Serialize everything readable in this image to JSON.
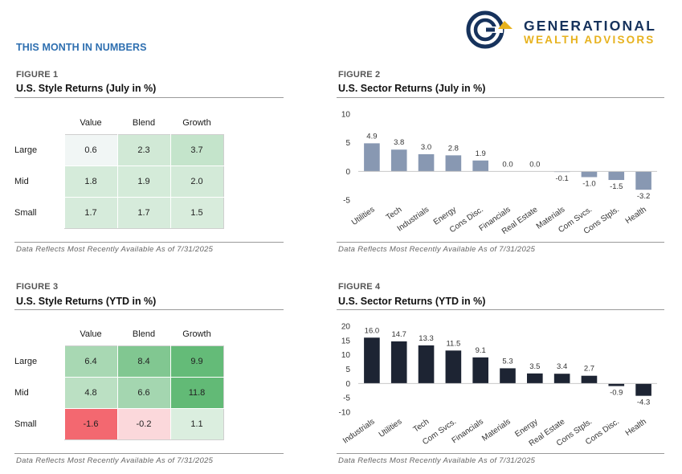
{
  "header": {
    "section_title": "THIS MONTH IN NUMBERS",
    "logo": {
      "line1": "GENERATIONAL",
      "line2": "WEALTH ADVISORS",
      "navy": "#16325c",
      "gold": "#e7b21e"
    }
  },
  "figures": {
    "fig1": {
      "label": "FIGURE 1",
      "title": "U.S. Style Returns (July in %)",
      "footnote": "Data Reflects Most Recently Available As of 7/31/2025",
      "columns": [
        "Value",
        "Blend",
        "Growth"
      ],
      "rows": [
        {
          "label": "Large",
          "values": [
            "0.6",
            "2.3",
            "3.7"
          ]
        },
        {
          "label": "Mid",
          "values": [
            "1.8",
            "1.9",
            "2.0"
          ]
        },
        {
          "label": "Small",
          "values": [
            "1.7",
            "1.7",
            "1.5"
          ]
        }
      ]
    },
    "fig2": {
      "label": "FIGURE 2",
      "title": "U.S. Sector Returns (July in %)",
      "footnote": "Data Reflects Most Recently Available As of 7/31/2025"
    },
    "fig3": {
      "label": "FIGURE 3",
      "title": "U.S. Style Returns (YTD in %)",
      "footnote": "Data Reflects Most Recently Available As of 7/31/2025",
      "columns": [
        "Value",
        "Blend",
        "Growth"
      ],
      "rows": [
        {
          "label": "Large",
          "values": [
            "6.4",
            "8.4",
            "9.9"
          ]
        },
        {
          "label": "Mid",
          "values": [
            "4.8",
            "6.6",
            "11.8"
          ]
        },
        {
          "label": "Small",
          "values": [
            "-1.6",
            "-0.2",
            "1.1"
          ]
        }
      ]
    },
    "fig4": {
      "label": "FIGURE 4",
      "title": "U.S. Sector Returns (YTD in %)",
      "footnote": "Data Reflects Most Recently Available As of 7/31/2025"
    }
  },
  "chart_data": [
    {
      "type": "table",
      "title": "U.S. Style Returns (July in %)",
      "columns": [
        "Value",
        "Blend",
        "Growth"
      ],
      "rows": [
        "Large",
        "Mid",
        "Small"
      ],
      "values": [
        [
          0.6,
          2.3,
          3.7
        ],
        [
          1.8,
          1.9,
          2.0
        ],
        [
          1.7,
          1.7,
          1.5
        ]
      ]
    },
    {
      "type": "bar",
      "title": "U.S. Sector Returns (July in %)",
      "categories": [
        "Utilities",
        "Tech",
        "Industrials",
        "Energy",
        "Cons Disc.",
        "Financials",
        "Real Estate",
        "Materials",
        "Com Svcs.",
        "Cons Stpls.",
        "Health"
      ],
      "values": [
        4.9,
        3.8,
        3.0,
        2.8,
        1.9,
        0.0,
        0.0,
        -0.1,
        -1.0,
        -1.5,
        -3.2
      ],
      "labels": [
        "4.9",
        "3.8",
        "3.0",
        "2.8",
        "1.9",
        "0.0",
        "0.0",
        "-0.1",
        "-1.0",
        "-1.5",
        "-3.2"
      ],
      "yticks": [
        "10",
        "5",
        "0",
        "-5"
      ],
      "ytick_values": [
        10,
        5,
        0,
        -5
      ],
      "ylim": [
        -5,
        10
      ],
      "color": "#8898b2"
    },
    {
      "type": "table",
      "title": "U.S. Style Returns (YTD in %)",
      "columns": [
        "Value",
        "Blend",
        "Growth"
      ],
      "rows": [
        "Large",
        "Mid",
        "Small"
      ],
      "values": [
        [
          6.4,
          8.4,
          9.9
        ],
        [
          4.8,
          6.6,
          11.8
        ],
        [
          -1.6,
          -0.2,
          1.1
        ]
      ]
    },
    {
      "type": "bar",
      "title": "U.S. Sector Returns (YTD in %)",
      "categories": [
        "Industrials",
        "Utilities",
        "Tech",
        "Com Svcs.",
        "Financials",
        "Materials",
        "Energy",
        "Real Estate",
        "Cons Stpls.",
        "Cons Disc.",
        "Health"
      ],
      "values": [
        16.0,
        14.7,
        13.3,
        11.5,
        9.1,
        5.3,
        3.5,
        3.4,
        2.7,
        -0.9,
        -4.3
      ],
      "labels": [
        "16.0",
        "14.7",
        "13.3",
        "11.5",
        "9.1",
        "5.3",
        "3.5",
        "3.4",
        "2.7",
        "-0.9",
        "-4.3"
      ],
      "yticks": [
        "20",
        "15",
        "10",
        "5",
        "0",
        "-5",
        "-10"
      ],
      "ytick_values": [
        20,
        15,
        10,
        5,
        0,
        -5,
        -10
      ],
      "ylim": [
        -10,
        20
      ],
      "color": "#1d2433"
    }
  ]
}
